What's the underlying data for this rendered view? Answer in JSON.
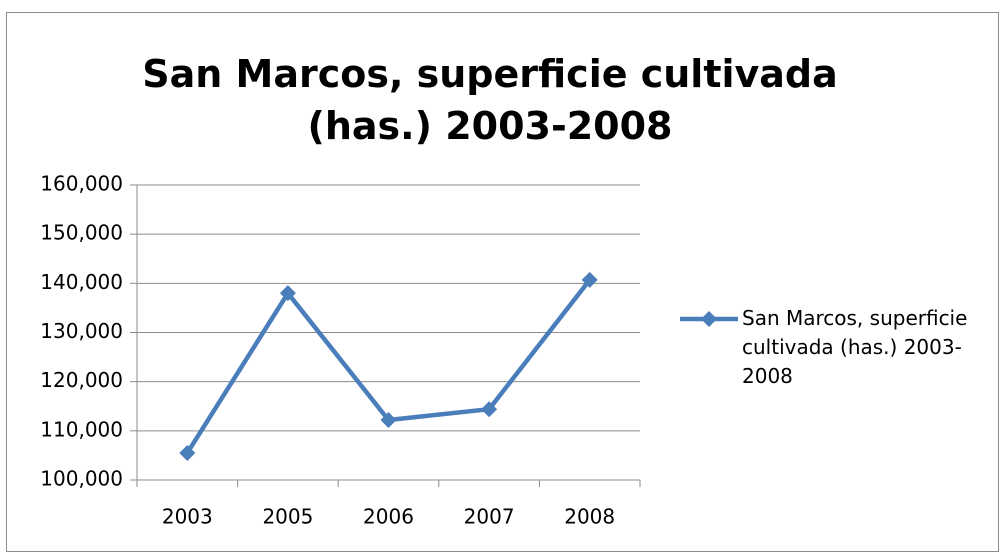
{
  "chart_data": {
    "type": "line",
    "title": "San Marcos, superficie cultivada (has.) 2003-2008",
    "categories": [
      "2003",
      "2005",
      "2006",
      "2007",
      "2008"
    ],
    "series": [
      {
        "name": "San Marcos, superficie cultivada (has.) 2003-2008",
        "color": "#4a7ebb",
        "values": [
          105500,
          138000,
          112200,
          114400,
          140700
        ]
      }
    ],
    "ylim": [
      100000,
      160000
    ],
    "yticks": [
      {
        "value": 100000,
        "label": "100,000"
      },
      {
        "value": 110000,
        "label": "110,000"
      },
      {
        "value": 120000,
        "label": "120,000"
      },
      {
        "value": 130000,
        "label": "130,000"
      },
      {
        "value": 140000,
        "label": "140,000"
      },
      {
        "value": 150000,
        "label": "150,000"
      },
      {
        "value": 160000,
        "label": "160,000"
      }
    ],
    "grid": true,
    "legend": "right"
  }
}
